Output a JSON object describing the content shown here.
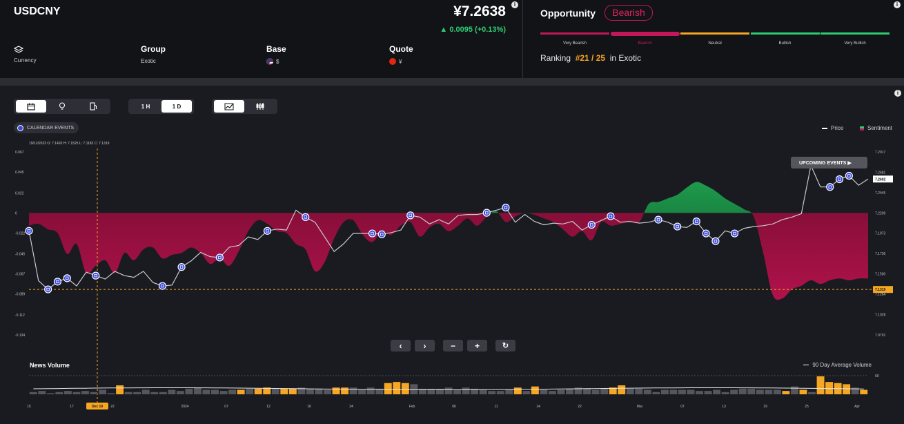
{
  "header": {
    "symbol": "USDCNY",
    "price": "¥7.2638",
    "change": "▲ 0.0095 (+0.13%)",
    "info_icon": "i",
    "category": {
      "icon": "layers-icon",
      "value": "Currency"
    },
    "group": {
      "label": "Group",
      "value": "Exotic"
    },
    "base": {
      "label": "Base",
      "flag": "us-flag-icon",
      "value": "$"
    },
    "quote": {
      "label": "Quote",
      "flag": "cn-flag-icon",
      "value": "¥"
    }
  },
  "opportunity": {
    "title": "Opportunity",
    "badge": "Bearish",
    "scale": [
      {
        "label": "Very Bearish",
        "color": "#c2185b"
      },
      {
        "label": "Bearish",
        "color": "#c2185b"
      },
      {
        "label": "Neutral",
        "color": "#f5a623"
      },
      {
        "label": "Bullish",
        "color": "#2ecc71"
      },
      {
        "label": "Very Bullish",
        "color": "#2ecc71"
      }
    ],
    "selected_index": 1,
    "ranking_label": "Ranking",
    "ranking_value": "#21 / 25",
    "ranking_suffix": "in Exotic"
  },
  "toolbar": {
    "views": [
      "calendar-icon",
      "bulb-icon",
      "gas-pump-icon"
    ],
    "intervals": [
      "1 H",
      "1 D"
    ],
    "active_interval": "1 D",
    "chart_styles": [
      "area-chart-icon",
      "candles-icon"
    ],
    "calendar_events": "CALENDAR EVENTS"
  },
  "chart_data": {
    "type": "line",
    "legend": [
      {
        "name": "Price",
        "color": "#ffffff"
      },
      {
        "name": "Sentiment",
        "color": "#2ecc71"
      }
    ],
    "ohlc_readout": "19/12/2023    O: 7.1492    H: 7.1525    L: 7.1183    C: 7.1319",
    "left_ticks": [
      "0.067",
      "0.045",
      "0.022",
      "0",
      "-0.022",
      "-0.045",
      "-0.067",
      "-0.089",
      "-0.112",
      "-0.134"
    ],
    "right_ticks": [
      "7.2917",
      "7.2681",
      "7.2445",
      "7.2209",
      "7.1973",
      "7.1736",
      "7.1500",
      "7.1264",
      "7.1028",
      "7.0791"
    ],
    "ylim": [
      7.0791,
      7.2917
    ],
    "sentiment_ylim": [
      -0.134,
      0.067
    ],
    "current_price_label": "7.2602",
    "crosshair_price_label": "7.1319",
    "crosshair_date_label": "Dec 19",
    "upcoming_events_label": "UPCOMING EVENTS ▶",
    "x_ticks": [
      "15",
      "17",
      "Dec 19",
      "22",
      "2024",
      "07",
      "12",
      "16",
      "24",
      "Feb",
      "06",
      "11",
      "14",
      "22",
      "Mar",
      "07",
      "13",
      "19",
      "25",
      "Apr"
    ],
    "price": [
      7.2,
      7.142,
      7.132,
      7.141,
      7.145,
      7.136,
      7.152,
      7.148,
      7.144,
      7.153,
      7.148,
      7.146,
      7.153,
      7.14,
      7.136,
      7.137,
      7.158,
      7.165,
      7.175,
      7.17,
      7.169,
      7.181,
      7.183,
      7.193,
      7.19,
      7.2,
      7.202,
      7.201,
      7.224,
      7.216,
      7.21,
      7.193,
      7.176,
      7.185,
      7.197,
      7.197,
      7.197,
      7.196,
      7.198,
      7.201,
      7.218,
      7.216,
      7.208,
      7.213,
      7.208,
      7.218,
      7.219,
      7.219,
      7.221,
      7.224,
      7.227,
      7.21,
      7.219,
      7.211,
      7.207,
      7.209,
      7.208,
      7.211,
      7.201,
      7.207,
      7.212,
      7.217,
      7.21,
      7.211,
      7.209,
      7.21,
      7.213,
      7.21,
      7.205,
      7.204,
      7.211,
      7.197,
      7.188,
      7.2,
      7.197,
      7.203,
      7.205,
      7.206,
      7.208,
      7.213,
      7.216,
      7.22,
      7.276,
      7.251,
      7.251,
      7.26,
      7.264,
      7.253,
      7.2602
    ],
    "sentiment": [
      -0.014,
      -0.012,
      -0.018,
      -0.022,
      -0.045,
      -0.034,
      -0.066,
      -0.058,
      -0.052,
      -0.066,
      -0.044,
      -0.052,
      -0.04,
      -0.038,
      -0.05,
      -0.046,
      -0.044,
      -0.038,
      -0.044,
      -0.056,
      -0.05,
      -0.058,
      -0.042,
      -0.02,
      -0.008,
      -0.012,
      -0.02,
      -0.022,
      -0.034,
      -0.04,
      -0.064,
      -0.054,
      -0.028,
      -0.01,
      -0.008,
      -0.024,
      -0.032,
      -0.02,
      -0.024,
      -0.014,
      -0.01,
      -0.026,
      -0.016,
      -0.012,
      -0.02,
      -0.014,
      -0.006,
      -0.014,
      -0.004,
      0.002,
      -0.01,
      -0.004,
      0.0,
      -0.002,
      -0.006,
      -0.01,
      -0.018,
      -0.026,
      -0.02,
      -0.03,
      -0.01,
      -0.014,
      -0.012,
      -0.01,
      -0.01,
      0.01,
      0.012,
      0.016,
      0.02,
      0.028,
      0.034,
      0.03,
      0.024,
      0.016,
      0.01,
      0.004,
      -0.004,
      -0.044,
      -0.09,
      -0.094,
      -0.084,
      -0.08,
      -0.074,
      -0.078,
      -0.074,
      -0.072,
      -0.074,
      -0.072,
      -0.072
    ],
    "event_indices": [
      0,
      2,
      3,
      4,
      7,
      14,
      16,
      20,
      25,
      29,
      36,
      37,
      40,
      48,
      50,
      59,
      61,
      66,
      68,
      70,
      71,
      72,
      74,
      84,
      85,
      86
    ]
  },
  "nav": {
    "prev": "‹",
    "next": "›",
    "zoom_out": "−",
    "zoom_in": "+",
    "reset": "↻"
  },
  "news_volume": {
    "title": "News Volume",
    "legend": "90 Day Average Volume",
    "avg_line_value": "69",
    "values": [
      2,
      3,
      1,
      2,
      3,
      2,
      3,
      2,
      4,
      1,
      8,
      2,
      2,
      4,
      2,
      2,
      4,
      3,
      5,
      6,
      4,
      4,
      3,
      4,
      4,
      5,
      5,
      6,
      5,
      5,
      5,
      6,
      5,
      5,
      4,
      6,
      6,
      6,
      4,
      6,
      5,
      10,
      11,
      10,
      9,
      5,
      5,
      5,
      6,
      4,
      6,
      5,
      4,
      3,
      3,
      4,
      6,
      3,
      7,
      4,
      3,
      4,
      5,
      6,
      5,
      4,
      5,
      6,
      8,
      5,
      5,
      4,
      2,
      4,
      4,
      4,
      4,
      3,
      3,
      4,
      2,
      4,
      5,
      5,
      4,
      4,
      4,
      3,
      7,
      4,
      2,
      16,
      11,
      10,
      9,
      6,
      4
    ],
    "highlight": [
      false,
      false,
      false,
      false,
      false,
      false,
      false,
      false,
      false,
      false,
      true,
      false,
      false,
      false,
      false,
      false,
      false,
      false,
      false,
      false,
      false,
      false,
      false,
      false,
      true,
      false,
      true,
      true,
      false,
      true,
      true,
      false,
      false,
      false,
      false,
      true,
      true,
      false,
      false,
      false,
      false,
      true,
      true,
      true,
      false,
      false,
      false,
      false,
      false,
      false,
      false,
      false,
      false,
      false,
      false,
      false,
      true,
      false,
      true,
      false,
      false,
      false,
      false,
      false,
      false,
      false,
      false,
      true,
      true,
      false,
      false,
      false,
      false,
      false,
      false,
      false,
      false,
      false,
      false,
      false,
      false,
      false,
      false,
      false,
      false,
      false,
      false,
      true,
      false,
      true,
      false,
      true,
      true,
      true,
      true,
      false,
      true
    ]
  }
}
